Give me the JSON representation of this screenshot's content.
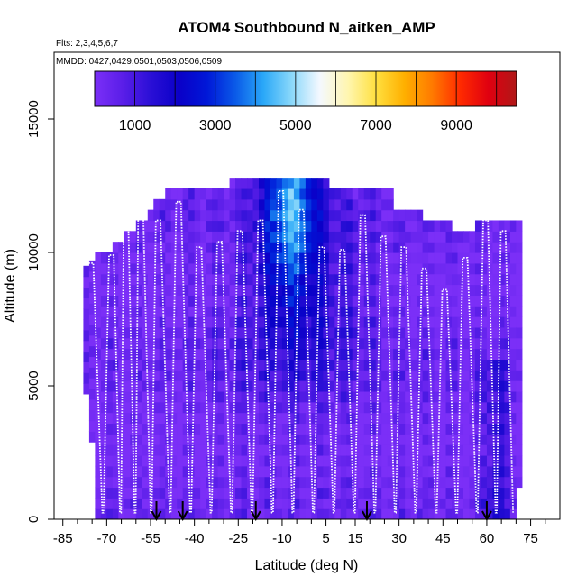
{
  "chart_data": {
    "type": "heatmap",
    "title": "ATOM4 Southbound N_aitken_AMP",
    "subtitle_flights": "Flts: 2,3,4,5,6,7",
    "subtitle_dates": "MMDD: 0427,0429,0501,0503,0506,0509",
    "xlabel": "Latitude (deg N)",
    "ylabel": "Altitude (m)",
    "xlim": [
      -88,
      85
    ],
    "ylim": [
      0,
      17500
    ],
    "x_ticks": [
      -85,
      -70,
      -55,
      -40,
      -25,
      -10,
      5,
      15,
      30,
      45,
      60,
      75
    ],
    "y_ticks": [
      0,
      5000,
      10000,
      15000
    ],
    "colorbar": {
      "range": [
        0,
        10500
      ],
      "ticks": [
        1000,
        3000,
        5000,
        7000,
        9000
      ],
      "colors": [
        "#7b2ff7",
        "#5a1ee8",
        "#2a0fd6",
        "#0a00c8",
        "#0018d8",
        "#0a5ae8",
        "#2aa8f8",
        "#8ad8fa",
        "#f4f8ff",
        "#fff6b0",
        "#ffe040",
        "#ffb000",
        "#ff7a00",
        "#ff2a00",
        "#e00010",
        "#b01818"
      ]
    },
    "colorbar_label_color": "#000000",
    "flight_track_color": "#ffffff",
    "arrow_latitudes": [
      -53,
      -44,
      -19,
      19,
      60
    ],
    "profile_peaks": [
      {
        "lat": -75,
        "alt": 9600
      },
      {
        "lat": -68,
        "alt": 9900
      },
      {
        "lat": -63,
        "alt": 11000
      },
      {
        "lat": -58,
        "alt": 11800
      },
      {
        "lat": -52,
        "alt": 11200
      },
      {
        "lat": -45,
        "alt": 11900
      },
      {
        "lat": -38,
        "alt": 10200
      },
      {
        "lat": -31,
        "alt": 10400
      },
      {
        "lat": -24,
        "alt": 10800
      },
      {
        "lat": -17,
        "alt": 11200
      },
      {
        "lat": -10,
        "alt": 12300
      },
      {
        "lat": -3,
        "alt": 11600
      },
      {
        "lat": 4,
        "alt": 10200
      },
      {
        "lat": 11,
        "alt": 10100
      },
      {
        "lat": 18,
        "alt": 11400
      },
      {
        "lat": 25,
        "alt": 10600
      },
      {
        "lat": 32,
        "alt": 10200
      },
      {
        "lat": 39,
        "alt": 9400
      },
      {
        "lat": 46,
        "alt": 8600
      },
      {
        "lat": 53,
        "alt": 9800
      },
      {
        "lat": 60,
        "alt": 11200
      },
      {
        "lat": 66,
        "alt": 10800
      }
    ]
  }
}
